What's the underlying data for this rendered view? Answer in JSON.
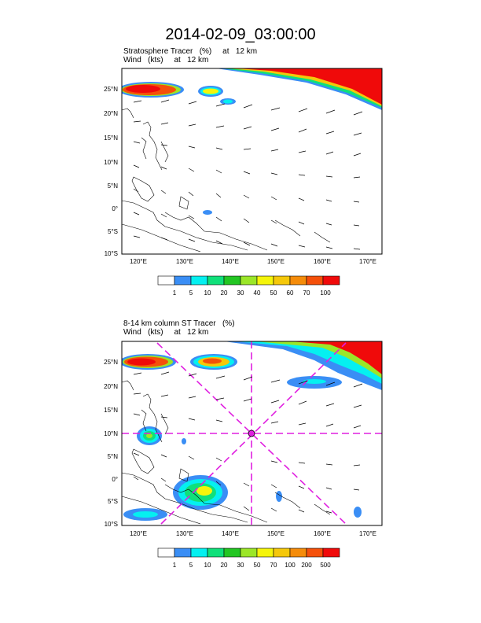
{
  "title": "2014-02-09_03:00:00",
  "colors": {
    "scale1": [
      "#ffffff",
      "#3a8ef5",
      "#05f0f0",
      "#10e07a",
      "#23c623",
      "#9be628",
      "#f5f50a",
      "#f5c80a",
      "#f58c0a",
      "#f5500a",
      "#f00a0a"
    ],
    "scale2": [
      "#ffffff",
      "#3a8ef5",
      "#05f0f0",
      "#10e07a",
      "#23c623",
      "#9be628",
      "#f5f50a",
      "#f5c80a",
      "#f58c0a",
      "#f5500a",
      "#f00a0a"
    ],
    "track": "#e020e0",
    "coast": "#000000"
  },
  "axes": {
    "lat_labels": [
      "25°N",
      "20°N",
      "15°N",
      "10°N",
      "5°N",
      "0°",
      "5°S",
      "10°S"
    ],
    "lon_labels": [
      "120°E",
      "130°E",
      "140°E",
      "150°E",
      "160°E",
      "170°E"
    ]
  },
  "panels": [
    {
      "line1": "Stratosphere Tracer   (%)     at   12 km",
      "line2": "Wind   (kts)     at   12 km",
      "colorbar_labels": [
        "1",
        "5",
        "10",
        "20",
        "30",
        "40",
        "50",
        "60",
        "70",
        "100"
      ]
    },
    {
      "line1": "8-14 km column ST Tracer   (%)",
      "line2": "Wind   (kts)     at   12 km",
      "colorbar_labels": [
        "1",
        "5",
        "10",
        "20",
        "30",
        "50",
        "70",
        "100",
        "200",
        "500"
      ]
    }
  ]
}
